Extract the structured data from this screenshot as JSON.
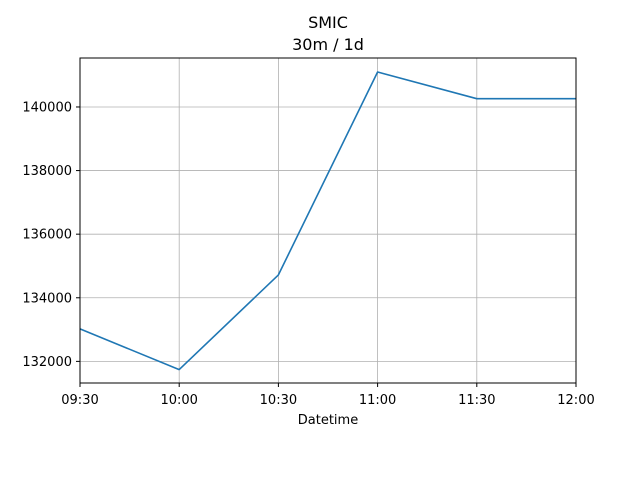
{
  "chart_data": {
    "type": "line",
    "title": "SMIC",
    "subtitle": "30m / 1d",
    "xlabel": "Datetime",
    "ylabel": "",
    "x": [
      "09:30",
      "10:00",
      "10:30",
      "11:00",
      "11:30",
      "12:00"
    ],
    "x_ticks": [
      "09:30",
      "10:00",
      "10:30",
      "11:00",
      "11:30",
      "12:00"
    ],
    "series": [
      {
        "values": [
          133020,
          131740,
          134720,
          141100,
          140260,
          140260
        ],
        "color": "#1f77b4"
      }
    ],
    "ylim": [
      131320,
      141540
    ],
    "y_ticks": [
      132000,
      134000,
      136000,
      138000,
      140000
    ],
    "grid": true
  }
}
